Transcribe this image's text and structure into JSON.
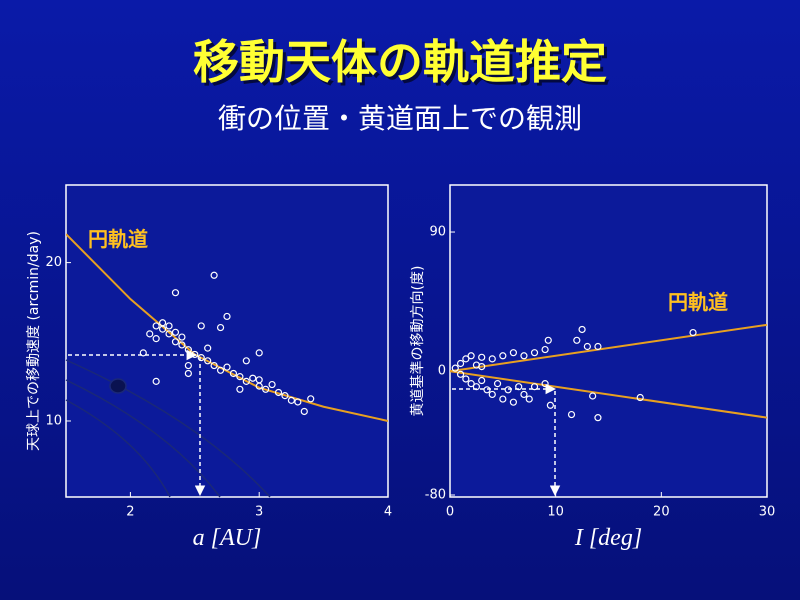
{
  "slide": {
    "title": "移動天体の軌道推定",
    "subtitle": "衝の位置・黄道面上での観測"
  },
  "chart_data": [
    {
      "type": "scatter",
      "xlabel": "a [AU]",
      "ylabel": "天球上での移動速度 (arcmin/day)",
      "xlim": [
        1.5,
        4
      ],
      "ylim": [
        5.2,
        24.9
      ],
      "xticks": [
        2,
        3,
        4
      ],
      "yticks": [
        10,
        20
      ],
      "series": [
        {
          "name": "円軌道",
          "type": "line",
          "color": "#e8a020",
          "x": [
            1.5,
            2,
            2.5,
            3,
            3.5,
            4
          ],
          "values": [
            21.8,
            17.7,
            14.2,
            12.1,
            10.9,
            10.0
          ]
        },
        {
          "color": "#ffffff",
          "x": [
            2.15,
            2.2,
            2.2,
            2.25,
            2.25,
            2.3,
            2.3,
            2.35,
            2.35,
            2.4,
            2.4,
            2.45,
            2.45,
            2.5,
            2.55,
            2.6,
            2.6,
            2.65,
            2.7,
            2.7,
            2.75,
            2.75,
            2.8,
            2.85,
            2.9,
            2.9,
            2.95,
            3.0,
            3.0,
            3.05,
            3.1,
            3.15,
            3.2,
            3.25,
            3.3,
            3.35,
            3.4,
            2.65,
            2.35,
            2.2,
            2.45,
            2.55,
            2.1,
            3.0,
            2.85
          ],
          "values": [
            15.5,
            16.0,
            15.2,
            15.8,
            16.2,
            15.5,
            16.0,
            15.0,
            15.6,
            14.8,
            15.3,
            14.5,
            13.5,
            14.2,
            14.0,
            13.8,
            14.6,
            13.5,
            13.2,
            15.9,
            13.4,
            16.6,
            13.0,
            12.8,
            12.5,
            13.8,
            12.7,
            12.2,
            12.6,
            12.0,
            12.3,
            11.8,
            11.6,
            11.3,
            11.2,
            10.6,
            11.4,
            19.2,
            18.1,
            12.5,
            13.0,
            16.0,
            14.3,
            14.3,
            12.0
          ]
        }
      ]
    },
    {
      "type": "scatter",
      "xlabel": "I [deg]",
      "ylabel": "黄道基準の移動方向(度)",
      "xlim": [
        0,
        30
      ],
      "ylim": [
        -81.3,
        120.4
      ],
      "xticks": [
        0,
        10,
        20,
        30
      ],
      "yticks": [
        -80,
        0,
        90
      ],
      "series": [
        {
          "name": "円軌道",
          "type": "line",
          "color": "#e8a020",
          "x": [
            0,
            30
          ],
          "values": [
            0,
            30
          ]
        },
        {
          "type": "line",
          "color": "#e8a020",
          "x": [
            0,
            30
          ],
          "values": [
            0,
            -30
          ]
        },
        {
          "color": "#ffffff",
          "x": [
            0.5,
            1,
            1.5,
            1.5,
            2,
            2,
            2.5,
            2.5,
            3,
            3,
            3.5,
            4,
            4,
            4.5,
            5,
            5,
            5.5,
            6,
            6,
            6.5,
            7,
            7,
            7.5,
            8,
            8,
            9,
            9,
            9.3,
            9.5,
            11.5,
            12,
            12.5,
            13,
            13.5,
            14,
            14,
            18,
            23,
            1,
            3
          ],
          "values": [
            2,
            5,
            8,
            -5,
            10,
            -8,
            4,
            -10,
            9,
            -6,
            -12,
            8,
            -15,
            -8,
            10,
            -18,
            -12,
            12,
            -20,
            -10,
            10,
            -15,
            -18,
            12,
            -10,
            14,
            -8,
            20,
            -22,
            -28,
            20,
            27,
            16,
            -16,
            -30,
            16,
            -17,
            25,
            -2,
            3
          ]
        }
      ]
    }
  ]
}
